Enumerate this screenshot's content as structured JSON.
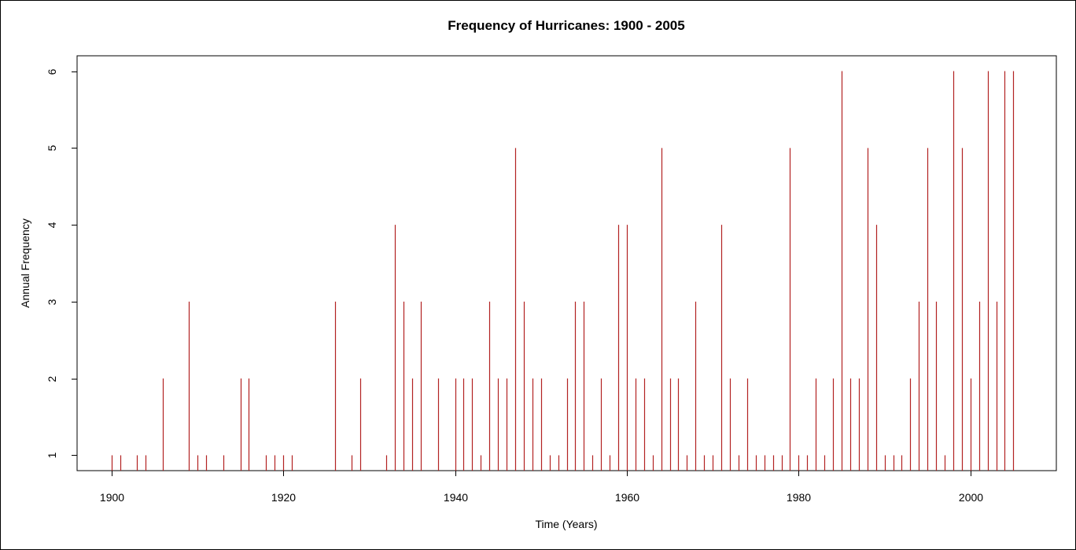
{
  "chart_data": {
    "type": "bar",
    "style": "histogram-spikes",
    "title": "Frequency of Hurricanes: 1900 - 2005",
    "xlabel": "Time (Years)",
    "ylabel": "Annual Frequency",
    "xlim": [
      1896,
      2010
    ],
    "ylim": [
      0.8,
      6.2
    ],
    "x_ticks": [
      1900,
      1920,
      1940,
      1960,
      1980,
      2000
    ],
    "y_ticks": [
      1,
      2,
      3,
      4,
      5,
      6
    ],
    "grid": false,
    "legend": "none",
    "bar_color": "#b22222",
    "x": [
      1900,
      1901,
      1903,
      1904,
      1906,
      1909,
      1910,
      1911,
      1913,
      1915,
      1916,
      1918,
      1919,
      1920,
      1921,
      1926,
      1928,
      1929,
      1932,
      1933,
      1934,
      1935,
      1936,
      1938,
      1940,
      1941,
      1942,
      1943,
      1944,
      1945,
      1946,
      1947,
      1948,
      1949,
      1950,
      1951,
      1952,
      1953,
      1954,
      1955,
      1956,
      1957,
      1958,
      1959,
      1960,
      1961,
      1962,
      1963,
      1964,
      1965,
      1966,
      1967,
      1968,
      1969,
      1970,
      1971,
      1972,
      1973,
      1974,
      1975,
      1976,
      1977,
      1978,
      1979,
      1980,
      1981,
      1982,
      1983,
      1984,
      1985,
      1986,
      1987,
      1988,
      1989,
      1990,
      1991,
      1992,
      1993,
      1994,
      1995,
      1996,
      1997,
      1998,
      1999,
      2000,
      2001,
      2002,
      2003,
      2004,
      2005
    ],
    "values": [
      1,
      1,
      1,
      1,
      2,
      3,
      1,
      1,
      1,
      2,
      2,
      1,
      1,
      1,
      1,
      3,
      1,
      2,
      1,
      4,
      3,
      2,
      3,
      2,
      2,
      2,
      2,
      1,
      3,
      2,
      2,
      5,
      3,
      2,
      2,
      1,
      1,
      2,
      3,
      3,
      1,
      2,
      1,
      4,
      4,
      2,
      2,
      1,
      5,
      2,
      2,
      1,
      3,
      1,
      1,
      4,
      2,
      1,
      2,
      1,
      1,
      1,
      1,
      5,
      1,
      1,
      2,
      1,
      2,
      6,
      2,
      2,
      5,
      4,
      1,
      1,
      1,
      2,
      3,
      5,
      3,
      1,
      6,
      5,
      2,
      3,
      6,
      3,
      6,
      6
    ]
  }
}
